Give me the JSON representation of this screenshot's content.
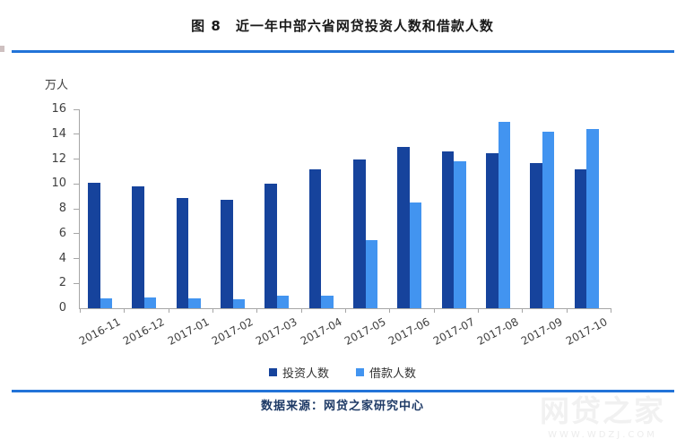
{
  "title": "图 8　近一年中部六省网贷投资人数和借款人数",
  "y_unit": "万人",
  "legend": {
    "items": [
      {
        "label": "投资人数",
        "color": "#16439C"
      },
      {
        "label": "借款人数",
        "color": "#4294F0"
      }
    ]
  },
  "footer": {
    "source": "数据来源：网贷之家研究中心"
  },
  "watermark": {
    "name": "网贷之家",
    "url_text": "WWW.WDZJ.COM"
  },
  "colors": {
    "divider_blue": "#2273D8",
    "investor_bar": "#16439C",
    "borrower_bar": "#4294F0",
    "axis_gray": "#A6A6A6"
  },
  "chart_data": {
    "type": "bar",
    "title": "图 8　近一年中部六省网贷投资人数和借款人数",
    "ylabel": "万人",
    "xlabel": "",
    "ylim": [
      0,
      16
    ],
    "ytick_step": 2,
    "grid": false,
    "legend_position": "bottom",
    "categories": [
      "2016-11",
      "2016-12",
      "2017-01",
      "2017-02",
      "2017-03",
      "2017-04",
      "2017-05",
      "2017-06",
      "2017-07",
      "2017-08",
      "2017-09",
      "2017-10"
    ],
    "series": [
      {
        "name": "投资人数",
        "color": "#16439C",
        "values": [
          10.1,
          9.8,
          8.9,
          8.7,
          10.0,
          11.2,
          12.0,
          13.0,
          12.6,
          12.5,
          11.7,
          11.2
        ]
      },
      {
        "name": "借款人数",
        "color": "#4294F0",
        "values": [
          0.8,
          0.9,
          0.8,
          0.7,
          1.0,
          1.0,
          5.5,
          8.5,
          11.8,
          15.0,
          14.2,
          14.4
        ]
      }
    ]
  }
}
